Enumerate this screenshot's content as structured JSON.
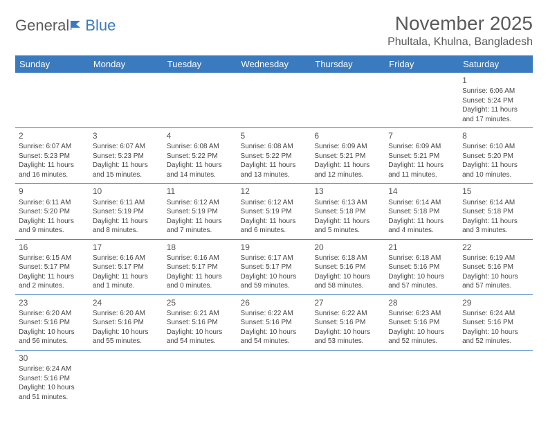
{
  "logo": {
    "general": "General",
    "blue": "Blue"
  },
  "title": "November 2025",
  "location": "Phultala, Khulna, Bangladesh",
  "colors": {
    "header_bg": "#3a7abf",
    "header_fg": "#ffffff",
    "rule": "#3a7abf",
    "text": "#444444"
  },
  "weekdays": [
    "Sunday",
    "Monday",
    "Tuesday",
    "Wednesday",
    "Thursday",
    "Friday",
    "Saturday"
  ],
  "grid": [
    [
      null,
      null,
      null,
      null,
      null,
      null,
      {
        "n": "1",
        "sr": "Sunrise: 6:06 AM",
        "ss": "Sunset: 5:24 PM",
        "dl": "Daylight: 11 hours and 17 minutes."
      }
    ],
    [
      {
        "n": "2",
        "sr": "Sunrise: 6:07 AM",
        "ss": "Sunset: 5:23 PM",
        "dl": "Daylight: 11 hours and 16 minutes."
      },
      {
        "n": "3",
        "sr": "Sunrise: 6:07 AM",
        "ss": "Sunset: 5:23 PM",
        "dl": "Daylight: 11 hours and 15 minutes."
      },
      {
        "n": "4",
        "sr": "Sunrise: 6:08 AM",
        "ss": "Sunset: 5:22 PM",
        "dl": "Daylight: 11 hours and 14 minutes."
      },
      {
        "n": "5",
        "sr": "Sunrise: 6:08 AM",
        "ss": "Sunset: 5:22 PM",
        "dl": "Daylight: 11 hours and 13 minutes."
      },
      {
        "n": "6",
        "sr": "Sunrise: 6:09 AM",
        "ss": "Sunset: 5:21 PM",
        "dl": "Daylight: 11 hours and 12 minutes."
      },
      {
        "n": "7",
        "sr": "Sunrise: 6:09 AM",
        "ss": "Sunset: 5:21 PM",
        "dl": "Daylight: 11 hours and 11 minutes."
      },
      {
        "n": "8",
        "sr": "Sunrise: 6:10 AM",
        "ss": "Sunset: 5:20 PM",
        "dl": "Daylight: 11 hours and 10 minutes."
      }
    ],
    [
      {
        "n": "9",
        "sr": "Sunrise: 6:11 AM",
        "ss": "Sunset: 5:20 PM",
        "dl": "Daylight: 11 hours and 9 minutes."
      },
      {
        "n": "10",
        "sr": "Sunrise: 6:11 AM",
        "ss": "Sunset: 5:19 PM",
        "dl": "Daylight: 11 hours and 8 minutes."
      },
      {
        "n": "11",
        "sr": "Sunrise: 6:12 AM",
        "ss": "Sunset: 5:19 PM",
        "dl": "Daylight: 11 hours and 7 minutes."
      },
      {
        "n": "12",
        "sr": "Sunrise: 6:12 AM",
        "ss": "Sunset: 5:19 PM",
        "dl": "Daylight: 11 hours and 6 minutes."
      },
      {
        "n": "13",
        "sr": "Sunrise: 6:13 AM",
        "ss": "Sunset: 5:18 PM",
        "dl": "Daylight: 11 hours and 5 minutes."
      },
      {
        "n": "14",
        "sr": "Sunrise: 6:14 AM",
        "ss": "Sunset: 5:18 PM",
        "dl": "Daylight: 11 hours and 4 minutes."
      },
      {
        "n": "15",
        "sr": "Sunrise: 6:14 AM",
        "ss": "Sunset: 5:18 PM",
        "dl": "Daylight: 11 hours and 3 minutes."
      }
    ],
    [
      {
        "n": "16",
        "sr": "Sunrise: 6:15 AM",
        "ss": "Sunset: 5:17 PM",
        "dl": "Daylight: 11 hours and 2 minutes."
      },
      {
        "n": "17",
        "sr": "Sunrise: 6:16 AM",
        "ss": "Sunset: 5:17 PM",
        "dl": "Daylight: 11 hours and 1 minute."
      },
      {
        "n": "18",
        "sr": "Sunrise: 6:16 AM",
        "ss": "Sunset: 5:17 PM",
        "dl": "Daylight: 11 hours and 0 minutes."
      },
      {
        "n": "19",
        "sr": "Sunrise: 6:17 AM",
        "ss": "Sunset: 5:17 PM",
        "dl": "Daylight: 10 hours and 59 minutes."
      },
      {
        "n": "20",
        "sr": "Sunrise: 6:18 AM",
        "ss": "Sunset: 5:16 PM",
        "dl": "Daylight: 10 hours and 58 minutes."
      },
      {
        "n": "21",
        "sr": "Sunrise: 6:18 AM",
        "ss": "Sunset: 5:16 PM",
        "dl": "Daylight: 10 hours and 57 minutes."
      },
      {
        "n": "22",
        "sr": "Sunrise: 6:19 AM",
        "ss": "Sunset: 5:16 PM",
        "dl": "Daylight: 10 hours and 57 minutes."
      }
    ],
    [
      {
        "n": "23",
        "sr": "Sunrise: 6:20 AM",
        "ss": "Sunset: 5:16 PM",
        "dl": "Daylight: 10 hours and 56 minutes."
      },
      {
        "n": "24",
        "sr": "Sunrise: 6:20 AM",
        "ss": "Sunset: 5:16 PM",
        "dl": "Daylight: 10 hours and 55 minutes."
      },
      {
        "n": "25",
        "sr": "Sunrise: 6:21 AM",
        "ss": "Sunset: 5:16 PM",
        "dl": "Daylight: 10 hours and 54 minutes."
      },
      {
        "n": "26",
        "sr": "Sunrise: 6:22 AM",
        "ss": "Sunset: 5:16 PM",
        "dl": "Daylight: 10 hours and 54 minutes."
      },
      {
        "n": "27",
        "sr": "Sunrise: 6:22 AM",
        "ss": "Sunset: 5:16 PM",
        "dl": "Daylight: 10 hours and 53 minutes."
      },
      {
        "n": "28",
        "sr": "Sunrise: 6:23 AM",
        "ss": "Sunset: 5:16 PM",
        "dl": "Daylight: 10 hours and 52 minutes."
      },
      {
        "n": "29",
        "sr": "Sunrise: 6:24 AM",
        "ss": "Sunset: 5:16 PM",
        "dl": "Daylight: 10 hours and 52 minutes."
      }
    ],
    [
      {
        "n": "30",
        "sr": "Sunrise: 6:24 AM",
        "ss": "Sunset: 5:16 PM",
        "dl": "Daylight: 10 hours and 51 minutes."
      },
      null,
      null,
      null,
      null,
      null,
      null
    ]
  ]
}
